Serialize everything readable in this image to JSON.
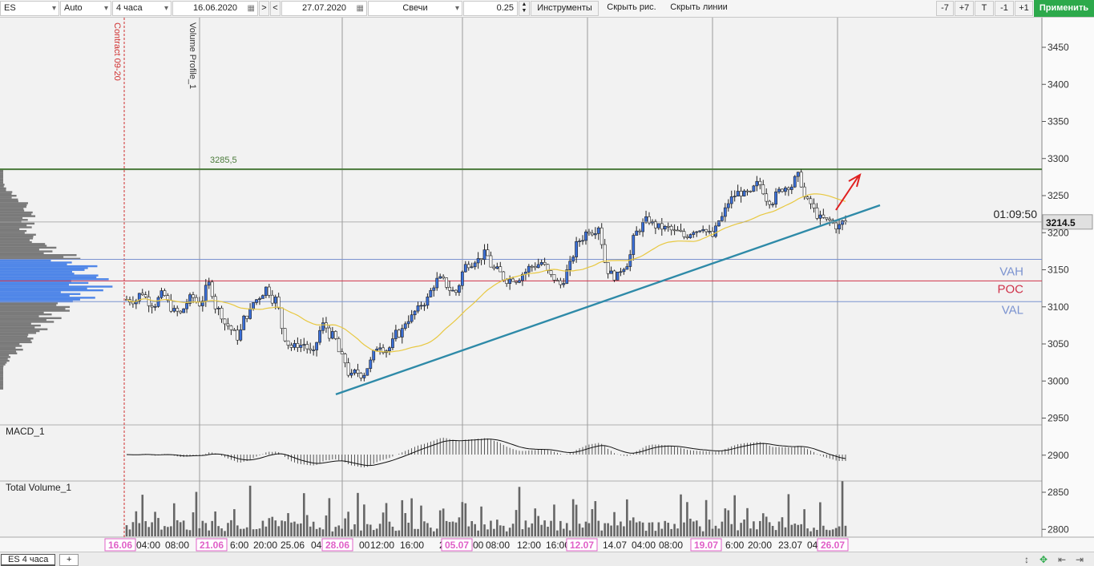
{
  "toolbar": {
    "symbol": "ES",
    "scale_mode": "Auto",
    "timeframe": "4 часа",
    "date_from": "16.06.2020",
    "nav_next": ">",
    "nav_prev": "<",
    "date_to": "27.07.2020",
    "chart_type": "Свечи",
    "tick_size": "0.25",
    "tools_label": "Инструменты",
    "hide_drawings_label": "Скрыть рис.",
    "hide_lines_label": "Скрыть линии",
    "minus7": "-7",
    "plus7": "+7",
    "t_label": "T",
    "minus1": "-1",
    "plus1": "+1",
    "apply_label": "Применить"
  },
  "chart_data": {
    "type": "candlestick",
    "instrument": "ES",
    "timeframe": "4 часа",
    "price_axis": {
      "min": 2780,
      "max": 3470,
      "ticks": [
        3450,
        3400,
        3350,
        3300,
        3250,
        3200,
        3150,
        3100,
        3050,
        3000,
        2950,
        2900,
        2850,
        2800
      ]
    },
    "time_axis_labels": [
      {
        "text": "16.06",
        "highlight": true
      },
      {
        "text": "04:00"
      },
      {
        "text": "08:00"
      },
      {
        "text": "21.06",
        "highlight": true
      },
      {
        "text": "6:00"
      },
      {
        "text": "20:00"
      },
      {
        "text": "25.06"
      },
      {
        "text": "04"
      },
      {
        "text": "28.06",
        "highlight": true
      },
      {
        "text": "00"
      },
      {
        "text": "12:00"
      },
      {
        "text": "16:00"
      },
      {
        "text": "20"
      },
      {
        "text": "05.07",
        "highlight": true
      },
      {
        "text": "00"
      },
      {
        "text": "08:00"
      },
      {
        "text": "12:00"
      },
      {
        "text": "16:00"
      },
      {
        "text": "12.07",
        "highlight": true
      },
      {
        "text": "14.07"
      },
      {
        "text": "04:00"
      },
      {
        "text": "08:00"
      },
      {
        "text": "19.07",
        "highlight": true
      },
      {
        "text": "6:00"
      },
      {
        "text": "20:00"
      },
      {
        "text": "23.07"
      },
      {
        "text": "04"
      },
      {
        "text": "26.07",
        "highlight": true
      }
    ],
    "close_path": [
      3110,
      3120,
      3105,
      3115,
      3100,
      3090,
      3110,
      3105,
      3130,
      3095,
      3075,
      3060,
      3090,
      3110,
      3125,
      3110,
      3060,
      3045,
      3050,
      3035,
      3075,
      3060,
      3030,
      3005,
      3010,
      3025,
      3050,
      3045,
      3065,
      3085,
      3095,
      3110,
      3135,
      3130,
      3120,
      3155,
      3165,
      3170,
      3150,
      3140,
      3140,
      3145,
      3155,
      3160,
      3140,
      3130,
      3155,
      3190,
      3205,
      3210,
      3150,
      3140,
      3160,
      3200,
      3215,
      3210,
      3205,
      3200,
      3195,
      3205,
      3210,
      3195,
      3220,
      3245,
      3255,
      3250,
      3265,
      3245,
      3255,
      3265,
      3275,
      3240,
      3225,
      3215,
      3210,
      3214.5
    ],
    "series": [
      {
        "name": "MA",
        "color": "#e8c840"
      }
    ],
    "levels": [
      {
        "label": "3285,5",
        "price": 3285.5,
        "color": "#4a7a3a"
      },
      {
        "label": "VAH",
        "price": 3164,
        "color": "#7b93d0"
      },
      {
        "label": "POC",
        "price": 3135,
        "color": "#d0324a"
      },
      {
        "label": "VAL",
        "price": 3107,
        "color": "#7b93d0"
      }
    ],
    "current_price": "3214.5",
    "timer": "01:09:50",
    "vertical_markers": [
      {
        "label": "Contract 09-20",
        "color": "#d03030"
      },
      {
        "label": "Volume Profile_1",
        "color": "#333333"
      }
    ],
    "trendline": {
      "from": {
        "date": "28.06",
        "price": 2982
      },
      "to": {
        "date": "27.07",
        "price": 3237
      },
      "color": "#2e8aa8"
    },
    "arrow_color": "#e02020"
  },
  "indicators": {
    "macd_label": "MACD_1",
    "volume_label": "Total Volume_1"
  },
  "tabs": {
    "active_tab": "ES 4 часа",
    "add_tab": "+"
  },
  "bottom_icons": {
    "fit": "↕",
    "expand": "✥",
    "scroll_left": "⇤",
    "scroll_start": "⇥"
  }
}
